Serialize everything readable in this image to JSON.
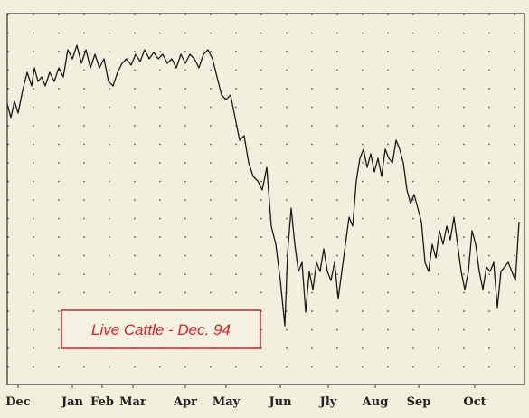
{
  "chart_data": {
    "type": "line",
    "annotation": "Live Cattle - Dec. 94",
    "xlim": [
      0,
      572
    ],
    "ylim": [
      0,
      410
    ],
    "xticks": [
      {
        "value": 12,
        "label": "Dec"
      },
      {
        "value": 72,
        "label": "Jan"
      },
      {
        "value": 105,
        "label": "Feb"
      },
      {
        "value": 139,
        "label": "Mar"
      },
      {
        "value": 197,
        "label": "Apr"
      },
      {
        "value": 242,
        "label": "May"
      },
      {
        "value": 302,
        "label": "Jun"
      },
      {
        "value": 355,
        "label": "Jly"
      },
      {
        "value": 407,
        "label": "Aug"
      },
      {
        "value": 455,
        "label": "Sep"
      },
      {
        "value": 517,
        "label": "Oct"
      }
    ],
    "color": "#1a1a1a",
    "x": [
      0,
      4,
      8,
      12,
      17,
      22,
      27,
      30,
      34,
      38,
      42,
      47,
      52,
      57,
      62,
      67,
      72,
      77,
      82,
      87,
      92,
      97,
      102,
      107,
      112,
      117,
      122,
      127,
      132,
      137,
      142,
      147,
      152,
      157,
      162,
      167,
      172,
      177,
      182,
      187,
      192,
      197,
      202,
      207,
      212,
      217,
      222,
      227,
      232,
      237,
      242,
      247,
      252,
      257,
      262,
      267,
      272,
      277,
      282,
      287,
      292,
      297,
      302,
      307,
      310,
      314,
      318,
      322,
      326,
      330,
      334,
      338,
      342,
      346,
      350,
      354,
      358,
      362,
      366,
      370,
      374,
      378,
      382,
      386,
      390,
      394,
      398,
      402,
      406,
      410,
      414,
      418,
      422,
      426,
      430,
      434,
      438,
      442,
      446,
      450,
      454,
      458,
      462,
      466,
      470,
      474,
      478,
      482,
      486,
      490,
      494,
      498,
      502,
      506,
      510,
      514,
      518,
      522,
      526,
      530,
      534,
      538,
      542,
      546,
      550,
      554,
      558,
      562,
      566
    ],
    "values": [
      310,
      295,
      313,
      300,
      325,
      345,
      330,
      350,
      335,
      340,
      330,
      345,
      335,
      350,
      340,
      370,
      360,
      375,
      355,
      370,
      350,
      365,
      350,
      360,
      335,
      330,
      345,
      355,
      360,
      353,
      365,
      357,
      370,
      360,
      367,
      360,
      365,
      355,
      360,
      350,
      365,
      355,
      365,
      360,
      350,
      365,
      370,
      360,
      340,
      320,
      315,
      320,
      295,
      270,
      275,
      245,
      230,
      225,
      215,
      240,
      175,
      155,
      115,
      65,
      145,
      195,
      155,
      125,
      135,
      80,
      125,
      105,
      135,
      125,
      150,
      125,
      115,
      135,
      95,
      125,
      155,
      185,
      175,
      225,
      250,
      260,
      240,
      255,
      235,
      250,
      230,
      260,
      250,
      245,
      270,
      260,
      245,
      215,
      200,
      210,
      195,
      180,
      135,
      125,
      155,
      140,
      170,
      155,
      175,
      160,
      185,
      155,
      125,
      105,
      125,
      170,
      155,
      125,
      105,
      130,
      125,
      135,
      85,
      125,
      130,
      135,
      125,
      115,
      180
    ]
  }
}
